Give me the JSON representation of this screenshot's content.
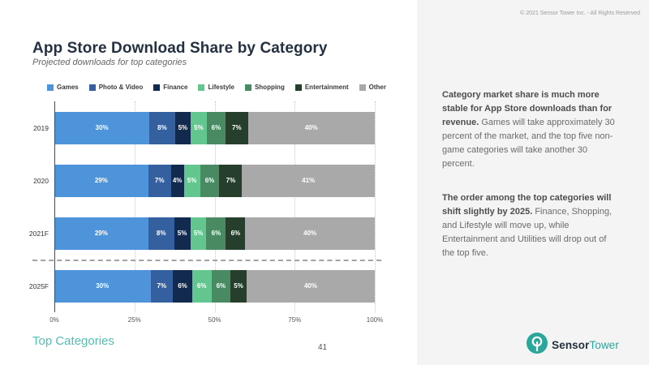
{
  "page": {
    "copyright": "© 2021 Sensor Tower Inc. - All Rights Reserved",
    "title": "App Store Download Share by Category",
    "subtitle": "Projected downloads for top categories",
    "footer_label": "Top Categories",
    "page_number": "41",
    "logo": {
      "icon": "sensor-tower-logo-icon",
      "sensor": "Sensor",
      "tower": "Tower",
      "accent_color": "#2aa79b",
      "dark_color": "#23303c"
    }
  },
  "chart_data": {
    "type": "bar",
    "orientation": "horizontal-stacked",
    "categories": [
      "2019",
      "2020",
      "2021F",
      "2025F"
    ],
    "series": [
      {
        "name": "Games",
        "color": "#4d94db",
        "values": [
          30,
          29,
          29,
          30
        ]
      },
      {
        "name": "Photo & Video",
        "color": "#35609f",
        "values": [
          8,
          7,
          8,
          7
        ]
      },
      {
        "name": "Finance",
        "color": "#122a4d",
        "values": [
          5,
          4,
          5,
          6
        ]
      },
      {
        "name": "Lifestyle",
        "color": "#63c68f",
        "values": [
          5,
          5,
          5,
          6
        ]
      },
      {
        "name": "Shopping",
        "color": "#498a63",
        "values": [
          6,
          6,
          6,
          6
        ]
      },
      {
        "name": "Entertainment",
        "color": "#253f2c",
        "values": [
          7,
          7,
          6,
          5
        ]
      },
      {
        "name": "Other",
        "color": "#a9a9a9",
        "values": [
          40,
          41,
          40,
          40
        ]
      }
    ],
    "x_ticks": [
      "0%",
      "25%",
      "50%",
      "75%",
      "100%"
    ],
    "xlim": [
      0,
      100
    ],
    "value_suffix": "%",
    "grid": "vertical-dotted",
    "legend_position": "top",
    "separator_after_category": "2021F"
  },
  "sidebar": {
    "paragraphs": [
      {
        "bold": "Category market share is much more stable for App Store downloads than for revenue.",
        "regular": "Games will take approximately 30 percent of the market, and the top five non-game categories will take another 30 percent."
      },
      {
        "bold": "The order among the top categories will shift slightly by 2025.",
        "regular": "Finance, Shopping, and Lifestyle will move up, while Entertainment and Utilities will drop out of the top five."
      }
    ]
  }
}
